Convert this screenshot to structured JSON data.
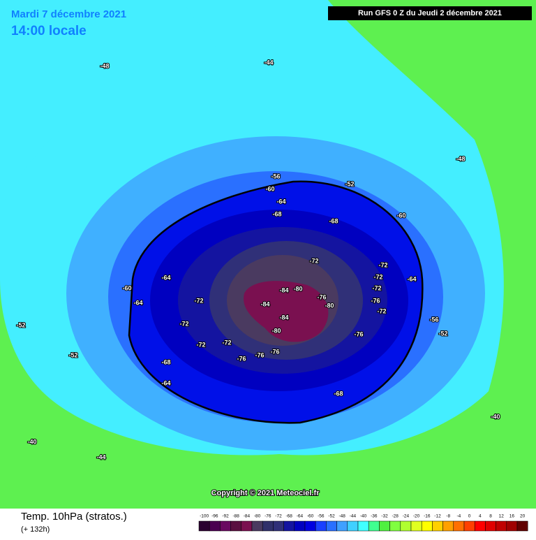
{
  "header": {
    "date": "Mardi 7 décembre 2021",
    "time": "14:00 locale",
    "run": "Run GFS 0 Z du Jeudi 2 décembre 2021"
  },
  "map": {
    "copyright": "Copyright © 2021 Meteociel.fr",
    "labels": [
      "-84",
      "-84",
      "-84",
      "-80",
      "-80",
      "-76",
      "-80",
      "-72",
      "-72",
      "-72",
      "-72",
      "-76",
      "-72",
      "-76",
      "-76",
      "-76",
      "-76",
      "-72",
      "-72",
      "-72",
      "-72",
      "-68",
      "-68",
      "-68",
      "-68",
      "-64",
      "-64",
      "-64",
      "-64",
      "-64",
      "-60",
      "-60",
      "-60",
      "-56",
      "-56",
      "-52",
      "-52",
      "-52",
      "-52",
      "-48",
      "-48",
      "-44",
      "-44",
      "-40",
      "-40"
    ]
  },
  "footer": {
    "title": "Temp. 10hPa (stratos.)",
    "subtitle": "(+ 132h)"
  },
  "legend": {
    "labels": [
      -100,
      -96,
      -92,
      -88,
      -84,
      -80,
      -76,
      -72,
      -68,
      -64,
      -60,
      -56,
      -52,
      -48,
      -44,
      -40,
      -36,
      -32,
      -28,
      -24,
      -20,
      -16,
      -12,
      -8,
      -4,
      0,
      4,
      8,
      12,
      16,
      20
    ],
    "colors": [
      "#2a0030",
      "#4a0050",
      "#6a0a60",
      "#5a1040",
      "#7a1050",
      "#4a3a60",
      "#30306a",
      "#303078",
      "#1414a0",
      "#0000c0",
      "#0000e0",
      "#1a40ff",
      "#2a70ff",
      "#40a0ff",
      "#40d0ff",
      "#40ffff",
      "#40ff90",
      "#50f040",
      "#80ff40",
      "#b0ff30",
      "#e0ff20",
      "#ffff00",
      "#ffd000",
      "#ffa000",
      "#ff7000",
      "#ff4000",
      "#ff0000",
      "#e00000",
      "#c00000",
      "#a00000",
      "#600000"
    ]
  }
}
